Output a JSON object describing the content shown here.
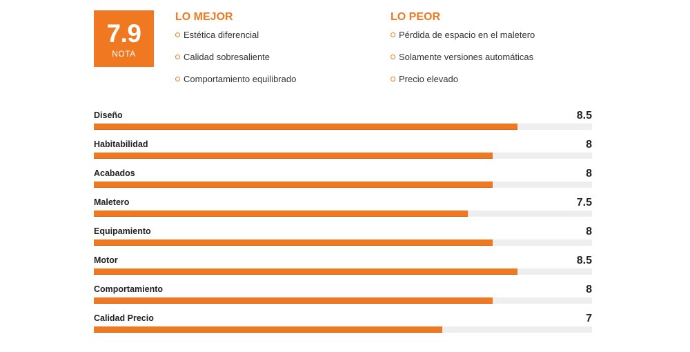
{
  "score": {
    "value": "7.9",
    "label": "NOTA"
  },
  "best": {
    "title": "LO MEJOR",
    "items": [
      "Estética diferencial",
      "Calidad sobresaliente",
      "Comportamiento equilibrado"
    ]
  },
  "worst": {
    "title": "LO PEOR",
    "items": [
      "Pérdida de espacio en el maletero",
      "Solamente versiones automáticas",
      "Precio elevado"
    ]
  },
  "ratings": {
    "max": 10,
    "items": [
      {
        "label": "Diseño",
        "value": "8.5"
      },
      {
        "label": "Habitabilidad",
        "value": "8"
      },
      {
        "label": "Acabados",
        "value": "8"
      },
      {
        "label": "Maletero",
        "value": "7.5"
      },
      {
        "label": "Equipamiento",
        "value": "8"
      },
      {
        "label": "Motor",
        "value": "8.5"
      },
      {
        "label": "Comportamiento",
        "value": "8"
      },
      {
        "label": "Calidad Precio",
        "value": "7"
      }
    ]
  },
  "colors": {
    "accent": "#f07820",
    "track": "#eeeeee",
    "text": "#333333"
  }
}
